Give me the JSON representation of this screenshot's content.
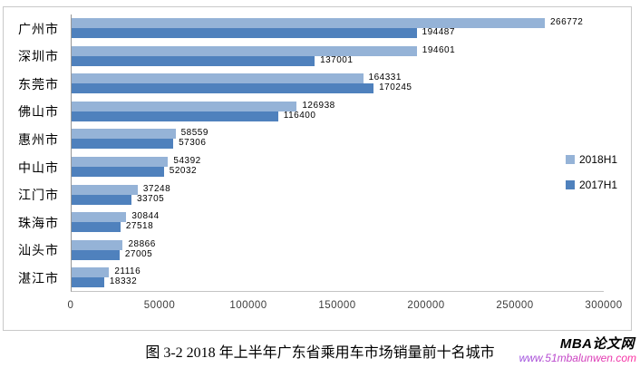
{
  "chart_data": {
    "type": "bar",
    "orientation": "horizontal",
    "title": "",
    "categories": [
      "广州市",
      "深圳市",
      "东莞市",
      "佛山市",
      "惠州市",
      "中山市",
      "江门市",
      "珠海市",
      "汕头市",
      "湛江市"
    ],
    "series": [
      {
        "name": "2018H1",
        "color": "#95B3D7",
        "values": [
          266772,
          194601,
          164331,
          126938,
          58559,
          54392,
          37248,
          30844,
          28866,
          21116
        ]
      },
      {
        "name": "2017H1",
        "color": "#4F81BD",
        "values": [
          194487,
          137001,
          170245,
          116400,
          57306,
          52032,
          33705,
          27518,
          27005,
          18332
        ]
      }
    ],
    "xlim": [
      0,
      300000
    ],
    "xticks": [
      0,
      50000,
      100000,
      150000,
      200000,
      250000,
      300000
    ],
    "grid": false,
    "value_labels": true,
    "legend_position": "right"
  },
  "caption": {
    "text": "图 3-2  2018 年上半年广东省乘用车市场销量前十名城市"
  },
  "watermark": {
    "brand": "MBA论文网",
    "url": "www.51mbalunwen.com",
    "url_gradient": [
      "#9b51e0",
      "#ff2e9e"
    ]
  }
}
